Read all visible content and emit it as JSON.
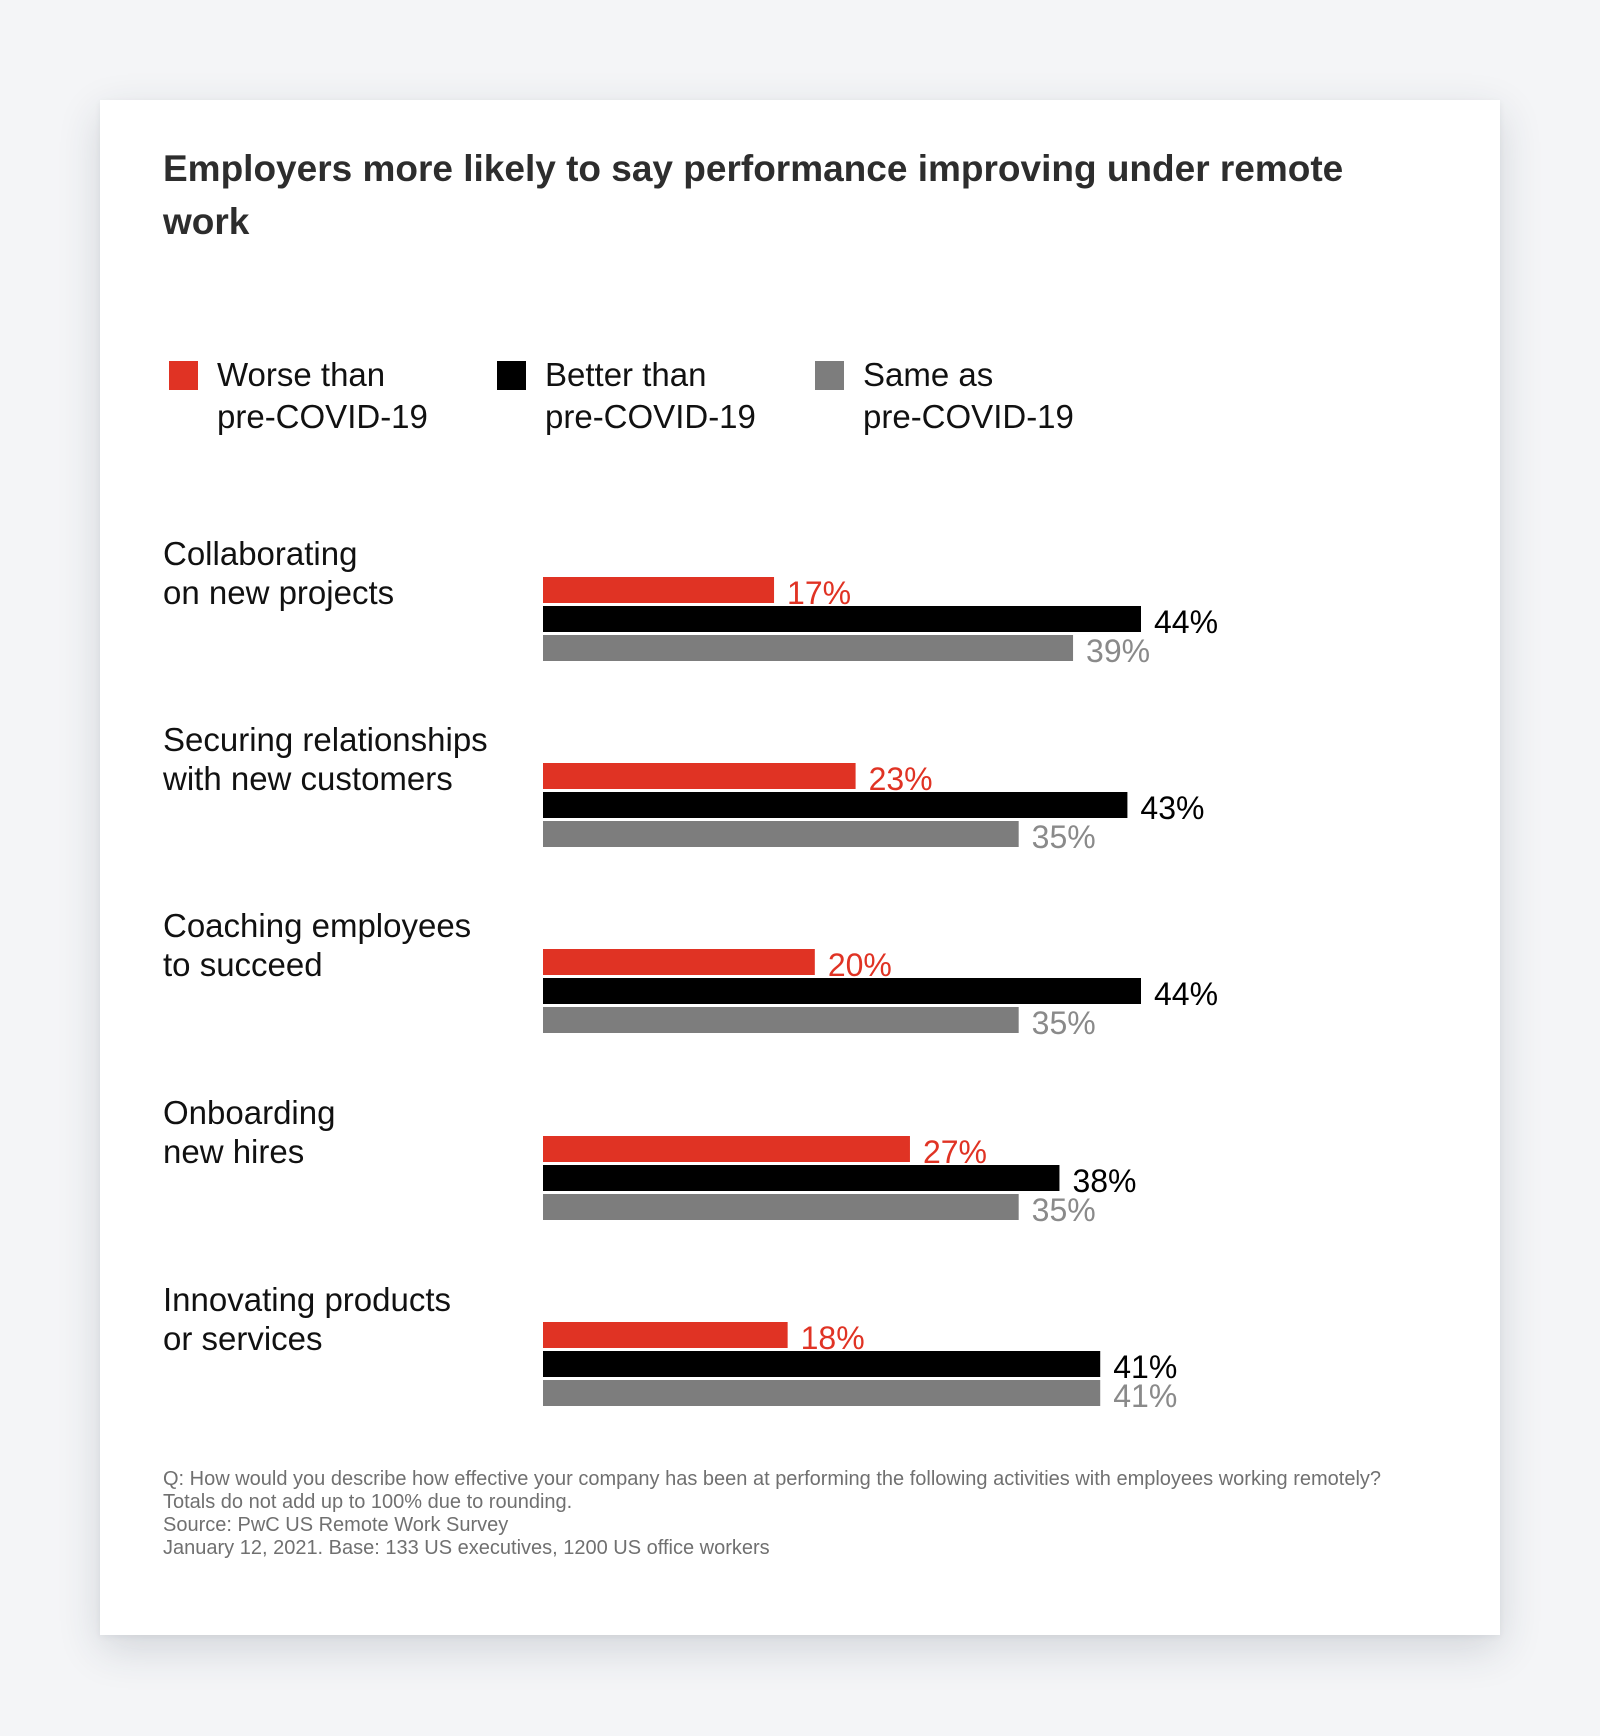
{
  "card": {
    "title": "Employers more likely to say performance improving under remote work"
  },
  "legend": [
    {
      "line1": "Worse than",
      "line2": "pre-COVID-19",
      "color": "#e03324"
    },
    {
      "line1": "Better than",
      "line2": "pre-COVID-19",
      "color": "#000000"
    },
    {
      "line1": "Same as",
      "line2": "pre-COVID-19",
      "color": "#7d7d7d"
    }
  ],
  "chart_data": {
    "type": "bar",
    "orientation": "horizontal",
    "title": "Employers more likely to say performance improving under remote work",
    "categories": [
      {
        "line1": "Collaborating",
        "line2": "on new projects"
      },
      {
        "line1": "Securing relationships",
        "line2": "with new customers"
      },
      {
        "line1": "Coaching employees",
        "line2": "to succeed"
      },
      {
        "line1": "Onboarding",
        "line2": "new hires"
      },
      {
        "line1": "Innovating products",
        "line2": "or services"
      }
    ],
    "series": [
      {
        "name": "Worse than pre-COVID-19",
        "color": "#e03324",
        "label_color": "#e03324",
        "values": [
          17,
          23,
          20,
          27,
          18
        ],
        "labels": [
          "17%",
          "23%",
          "20%",
          "27%",
          "18%"
        ]
      },
      {
        "name": "Better than pre-COVID-19",
        "color": "#000000",
        "label_color": "#000000",
        "values": [
          44,
          43,
          44,
          38,
          41
        ],
        "labels": [
          "44%",
          "43%",
          "44%",
          "38%",
          "41%"
        ]
      },
      {
        "name": "Same as pre-COVID-19",
        "color": "#7d7d7d",
        "label_color": "#8a8a8a",
        "values": [
          39,
          35,
          35,
          35,
          41
        ],
        "labels": [
          "39%",
          "35%",
          "35%",
          "35%",
          "41%"
        ]
      }
    ],
    "value_unit": "%",
    "xlim": [
      0,
      44
    ],
    "grid": false,
    "axes_visible": false,
    "legend_position": "top-left"
  },
  "footnote": {
    "question": "Q: How would you describe how effective your company has been at performing the following activities with employees working remotely?",
    "rounding": "Totals do not add up to 100% due to rounding.",
    "source": "Source: PwC US Remote Work Survey",
    "base": "January 12, 2021. Base: 133 US executives, 1200 US office workers"
  }
}
